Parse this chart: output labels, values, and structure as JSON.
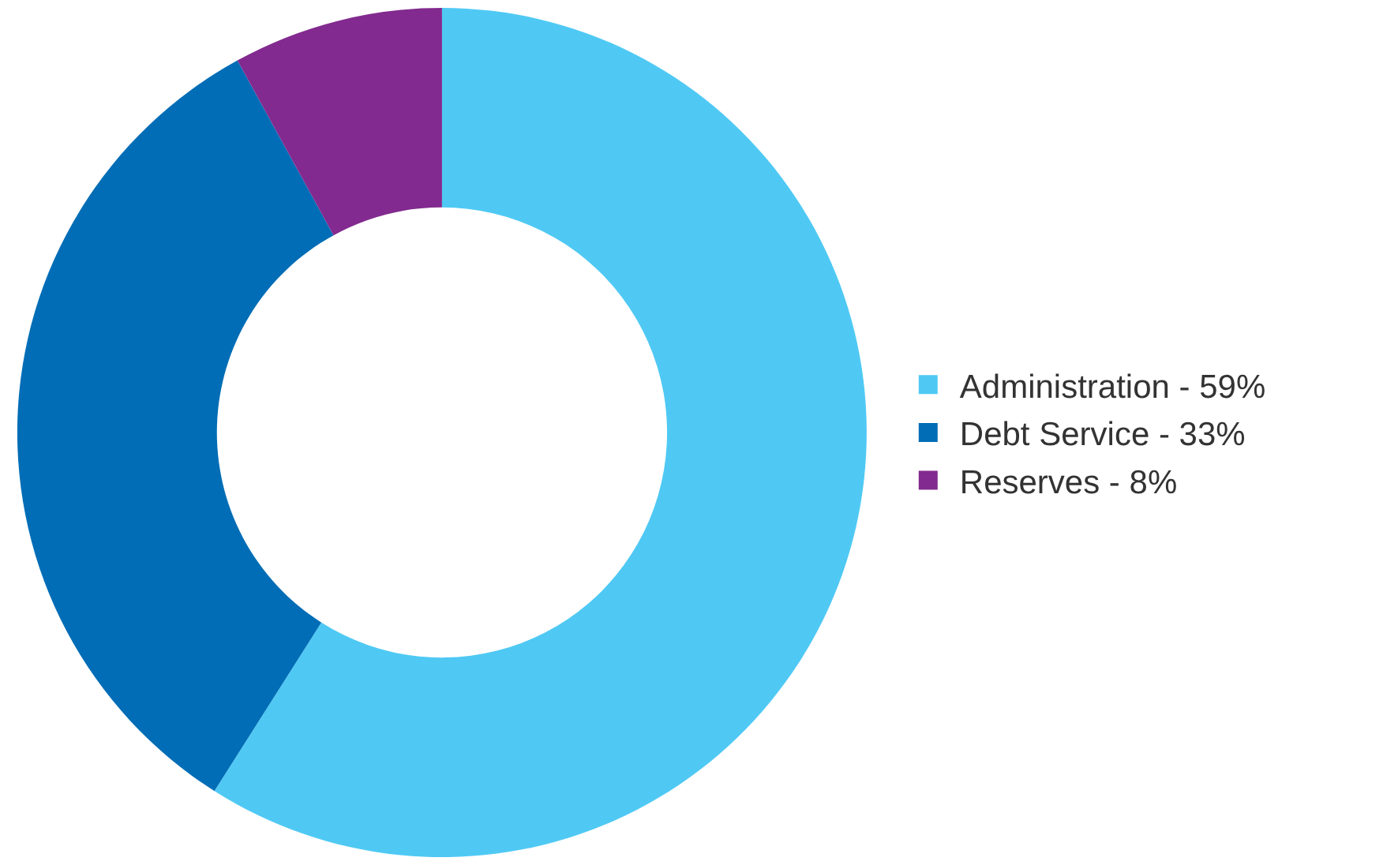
{
  "chart_data": {
    "type": "donut",
    "categories": [
      "Administration - 59%",
      "Debt Service - 33%",
      "Reserves - 8%"
    ],
    "values": [
      59,
      33,
      8
    ],
    "colors": [
      "#4fc9f4",
      "#006db6",
      "#822a8f"
    ],
    "legend": "right"
  }
}
